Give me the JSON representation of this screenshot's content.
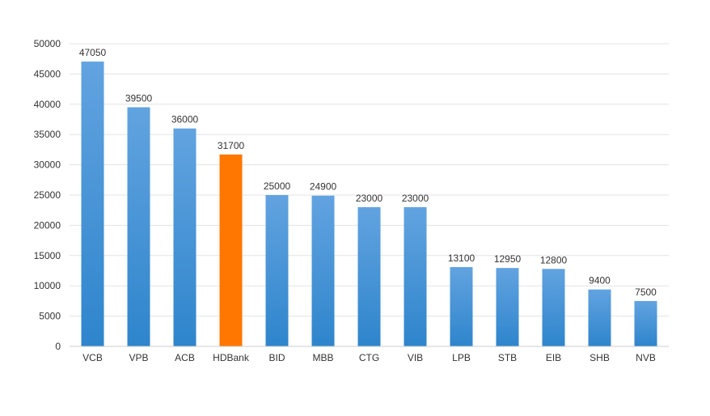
{
  "chart_data": {
    "type": "bar",
    "title": "",
    "xlabel": "",
    "ylabel": "",
    "ylim": [
      0,
      50000
    ],
    "yticks": [
      0,
      5000,
      10000,
      15000,
      20000,
      25000,
      30000,
      35000,
      40000,
      45000,
      50000
    ],
    "grid": true,
    "legend": "none",
    "categories": [
      "VCB",
      "VPB",
      "ACB",
      "HDBank",
      "BID",
      "MBB",
      "CTG",
      "VIB",
      "LPB",
      "STB",
      "EIB",
      "SHB",
      "NVB"
    ],
    "values": [
      47050,
      39500,
      36000,
      31700,
      25000,
      24900,
      23000,
      23000,
      13100,
      12950,
      12800,
      9400,
      7500
    ],
    "highlight_category": "HDBank",
    "colors": {
      "bar_top": "#62a3e0",
      "bar_bottom": "#2e85cc",
      "highlight": "#ff7700",
      "grid": "#e3e3e3",
      "axis": "#cccccc",
      "text": "#333333"
    }
  }
}
